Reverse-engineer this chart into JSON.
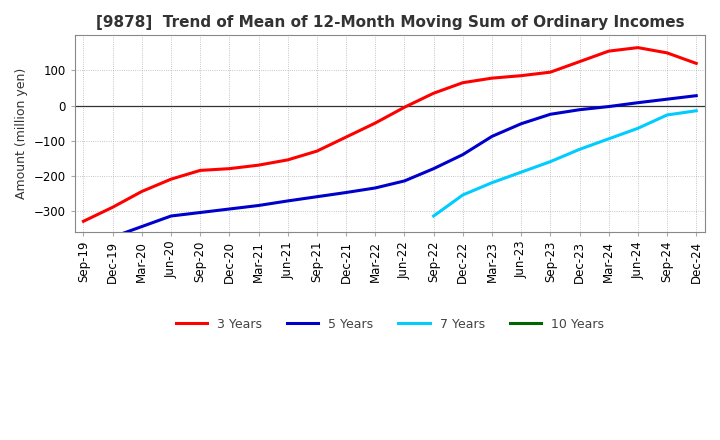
{
  "title": "[9878]  Trend of Mean of 12-Month Moving Sum of Ordinary Incomes",
  "ylabel": "Amount (million yen)",
  "background_color": "#ffffff",
  "plot_bg_color": "#ffffff",
  "grid_color": "#aaaaaa",
  "ylim": [
    -360,
    200
  ],
  "x_labels": [
    "Sep-19",
    "Dec-19",
    "Mar-20",
    "Jun-20",
    "Sep-20",
    "Dec-20",
    "Mar-21",
    "Jun-21",
    "Sep-21",
    "Dec-21",
    "Mar-22",
    "Jun-22",
    "Sep-22",
    "Dec-22",
    "Mar-23",
    "Jun-23",
    "Sep-23",
    "Dec-23",
    "Mar-24",
    "Jun-24",
    "Sep-24",
    "Dec-24"
  ],
  "series": {
    "3 Years": {
      "color": "#ff0000",
      "data": [
        -330,
        -290,
        -245,
        -210,
        -185,
        -180,
        -170,
        -155,
        -130,
        -90,
        -50,
        -5,
        35,
        65,
        78,
        85,
        95,
        125,
        155,
        165,
        150,
        120
      ]
    },
    "5 Years": {
      "color": "#0000cc",
      "data": [
        null,
        -375,
        -345,
        -315,
        -305,
        -295,
        -285,
        -272,
        -260,
        -248,
        -235,
        -215,
        -180,
        -140,
        -88,
        -52,
        -25,
        -12,
        -3,
        8,
        18,
        28
      ]
    },
    "7 Years": {
      "color": "#00ccff",
      "data": [
        null,
        null,
        null,
        null,
        null,
        null,
        null,
        null,
        null,
        null,
        null,
        null,
        -315,
        -255,
        -220,
        -190,
        -160,
        -125,
        -95,
        -65,
        -27,
        -15
      ]
    },
    "10 Years": {
      "color": "#006600",
      "data": [
        null,
        null,
        null,
        null,
        null,
        null,
        null,
        null,
        null,
        null,
        null,
        null,
        null,
        null,
        null,
        null,
        null,
        null,
        null,
        null,
        null,
        null
      ]
    }
  },
  "legend_order": [
    "3 Years",
    "5 Years",
    "7 Years",
    "10 Years"
  ],
  "yticks": [
    100,
    0,
    -100,
    -200,
    -300
  ],
  "title_color": "#333333",
  "title_fontsize": 11,
  "ylabel_fontsize": 9,
  "tick_fontsize": 8.5,
  "linewidth": 2.2
}
